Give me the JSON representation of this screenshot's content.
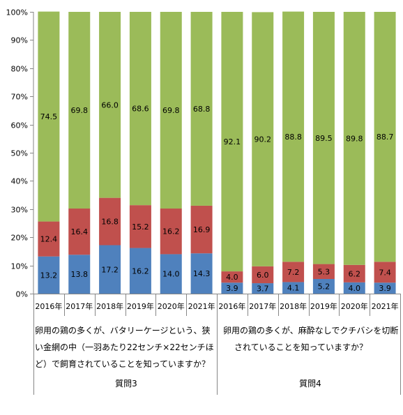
{
  "chart_data": {
    "type": "bar",
    "stacked": true,
    "percent_stacked": true,
    "ylim": [
      0,
      100
    ],
    "yticks": [
      "0%",
      "10%",
      "20%",
      "30%",
      "40%",
      "50%",
      "60%",
      "70%",
      "80%",
      "90%",
      "100%"
    ],
    "grid": false,
    "categories": [
      "2016年",
      "2017年",
      "2018年",
      "2019年",
      "2020年",
      "2021年",
      "2016年",
      "2017年",
      "2018年",
      "2019年",
      "2020年",
      "2021年"
    ],
    "groups": [
      {
        "name": "質問3",
        "question": "卵用の鶏の多くが、バタリーケージという、狭い金網の中（一羽あたり22センチ×22センチほど）で飼育されていることを知っていますか？",
        "question_lines": [
          "卵用の鶏の多くが、バタリーケージという、狭",
          "い金網の中（一羽あたり22センチ×22センチほ",
          "ど）で飼育されていることを知っていますか？"
        ]
      },
      {
        "name": "質問4",
        "question": "卵用の鶏の多くが、麻酔なしでクチバシを切断されていることを知っていますか？",
        "question_lines": [
          "卵用の鶏の多くが、麻酔なしでクチバシを切断",
          "されていることを知っていますか？"
        ]
      }
    ],
    "series": [
      {
        "color": "#4f81bd",
        "values": [
          13.2,
          13.8,
          17.2,
          16.2,
          14.0,
          14.3,
          3.9,
          3.7,
          4.1,
          5.2,
          4.0,
          3.9
        ],
        "labels": [
          "13.2",
          "13.8",
          "17.2",
          "16.2",
          "14.0",
          "14.3",
          "3.9",
          "3.7",
          "4.1",
          "5.2",
          "4.0",
          "3.9"
        ]
      },
      {
        "color": "#c0504d",
        "values": [
          12.4,
          16.4,
          16.8,
          15.2,
          16.2,
          16.9,
          4.0,
          6.0,
          7.2,
          5.3,
          6.2,
          7.4
        ],
        "labels": [
          "12.4",
          "16.4",
          "16.8",
          "15.2",
          "16.2",
          "16.9",
          "4.0",
          "6.0",
          "7.2",
          "5.3",
          "6.2",
          "7.4"
        ]
      },
      {
        "color": "#9bbb59",
        "values": [
          74.5,
          69.8,
          66.0,
          68.6,
          69.8,
          68.8,
          92.1,
          90.2,
          88.8,
          89.5,
          89.8,
          88.7
        ],
        "labels": [
          "74.5",
          "69.8",
          "66.0",
          "68.6",
          "69.8",
          "68.8",
          "92.1",
          "90.2",
          "88.8",
          "89.5",
          "89.8",
          "88.7"
        ]
      }
    ]
  }
}
